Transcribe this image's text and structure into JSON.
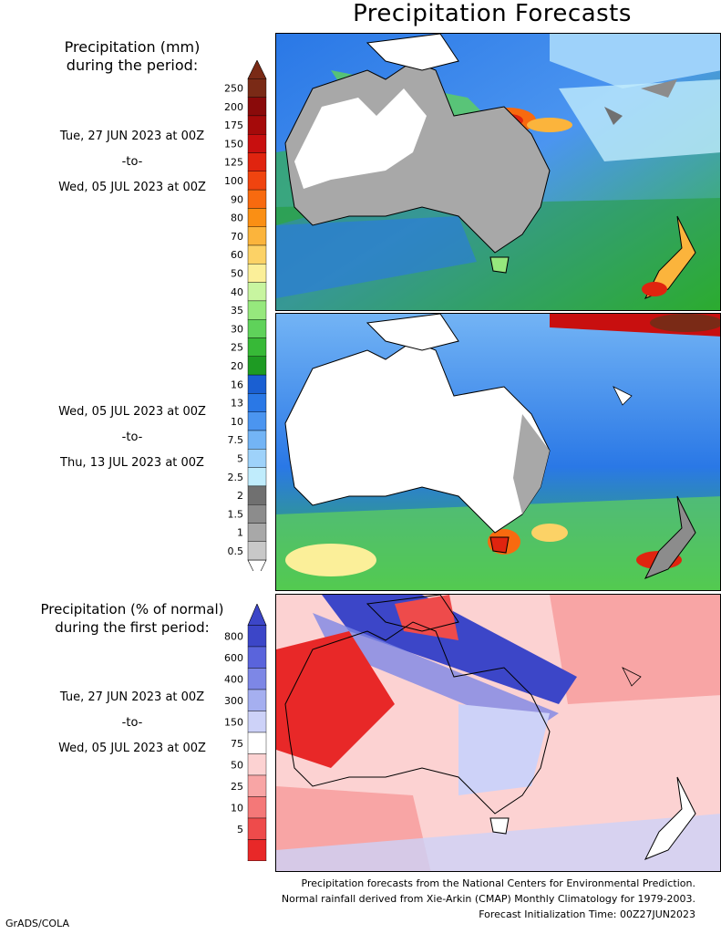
{
  "title": "Precipitation Forecasts",
  "top_legend": {
    "heading_line1": "Precipitation (mm)",
    "heading_line2": "during the period:",
    "ticks": [
      "250",
      "200",
      "175",
      "150",
      "125",
      "100",
      "90",
      "80",
      "70",
      "60",
      "50",
      "40",
      "35",
      "30",
      "25",
      "20",
      "16",
      "13",
      "10",
      "7.5",
      "5",
      "2.5",
      "2",
      "1.5",
      "1",
      "0.5"
    ],
    "colors": [
      "#7a2a16",
      "#8a0a0a",
      "#a50a0a",
      "#c80f0f",
      "#e0240f",
      "#f0440f",
      "#f86a0f",
      "#fa8f14",
      "#fbb43c",
      "#fcd266",
      "#fbef99",
      "#c8f5a0",
      "#96e87d",
      "#5fd25a",
      "#37b937",
      "#1e9b23",
      "#1a5fd2",
      "#2a78e6",
      "#4b95f0",
      "#73b4f5",
      "#9ed2fa",
      "#c0ecfc",
      "#707070",
      "#8c8c8c",
      "#a8a8a8",
      "#c8c8c8"
    ]
  },
  "period1": {
    "start": "Tue, 27 JUN 2023 at 00Z",
    "sep": "-to-",
    "end": "Wed, 05 JUL 2023 at 00Z"
  },
  "period2": {
    "start": "Wed, 05 JUL 2023 at 00Z",
    "sep": "-to-",
    "end": "Thu, 13 JUL 2023 at 00Z"
  },
  "bottom_legend": {
    "heading_line1": "Precipitation (% of normal)",
    "heading_line2": "during the first period:",
    "ticks": [
      "800",
      "600",
      "400",
      "300",
      "150",
      "75",
      "50",
      "25",
      "10",
      "5"
    ],
    "colors": [
      "#3c46c8",
      "#5a64dc",
      "#7d87e6",
      "#a5aff0",
      "#cdd2f8",
      "#ffffff",
      "#fcd2d2",
      "#f8a5a5",
      "#f47878",
      "#ee4b4b",
      "#e82828"
    ]
  },
  "period3": {
    "start": "Tue, 27 JUN 2023 at 00Z",
    "sep": "-to-",
    "end": "Wed, 05 JUL 2023 at 00Z"
  },
  "footer": {
    "line1": "Precipitation forecasts from the National Centers for Environmental Prediction.",
    "line2": "Normal rainfall derived from Xie-Arkin (CMAP) Monthly Climatology for 1979-2003.",
    "line3": "Forecast Initialization Time: 00Z27JUN2023"
  },
  "credit": "GrADS/COLA"
}
